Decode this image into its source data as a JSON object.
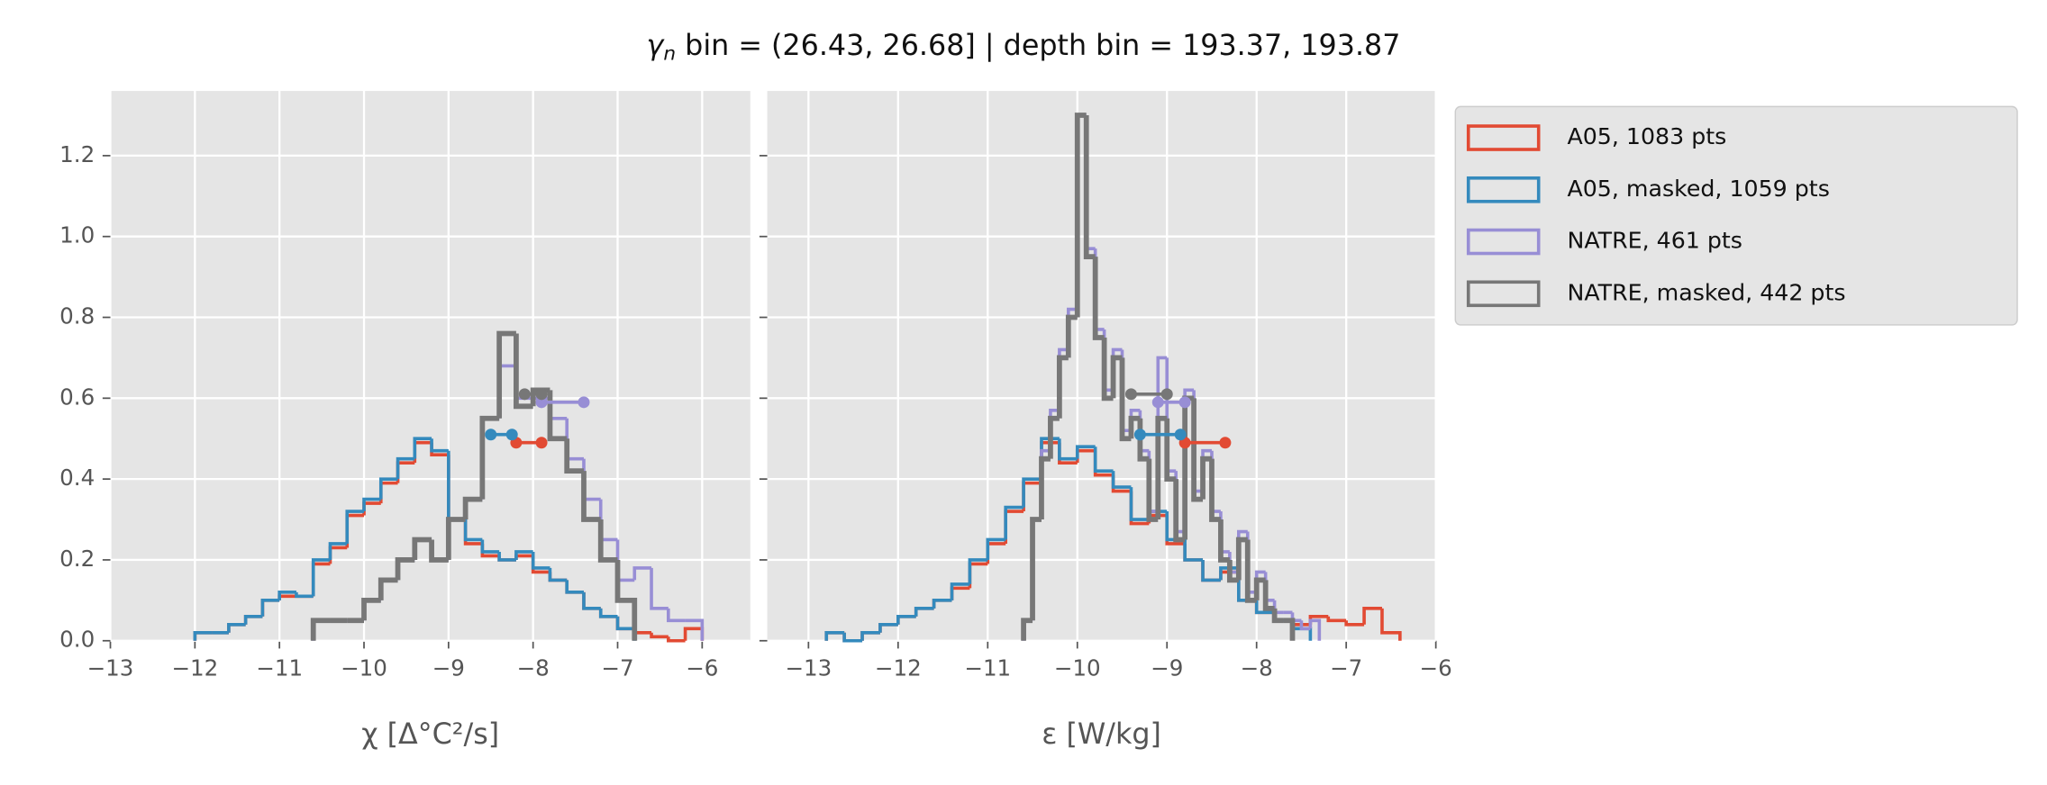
{
  "title_symbol": "γ",
  "title_symbol_sub": "n",
  "title": " bin = (26.43, 26.68] | depth bin = 193.37, 193.87",
  "chart_data": [
    {
      "type": "histogram",
      "xlabel": "χ [Δ°C²/s]",
      "legend": "outside upper right",
      "grid": true,
      "xlim": [
        -13,
        -5.43
      ],
      "ylim": [
        0,
        1.36
      ],
      "xticks": [
        {
          "value": -13,
          "label": "−13"
        },
        {
          "value": -12,
          "label": "−12"
        },
        {
          "value": -11,
          "label": "−11"
        },
        {
          "value": -10,
          "label": "−10"
        },
        {
          "value": -9,
          "label": "−9"
        },
        {
          "value": -8,
          "label": "−8"
        },
        {
          "value": -7,
          "label": "−7"
        },
        {
          "value": -6,
          "label": "−6"
        }
      ],
      "yticks": [
        {
          "value": 0,
          "label": "0.0"
        },
        {
          "value": 0.2,
          "label": "0.2"
        },
        {
          "value": 0.4,
          "label": "0.4"
        },
        {
          "value": 0.6,
          "label": "0.6"
        },
        {
          "value": 0.8,
          "label": "0.8"
        },
        {
          "value": 1.0,
          "label": "1.0"
        },
        {
          "value": 1.2,
          "label": "1.2"
        }
      ],
      "series": [
        {
          "name": "A05, 1083 pts",
          "color": "#E24A33",
          "width": 2.5,
          "bins": [
            -12,
            -11.8,
            -11.6,
            -11.4,
            -11.2,
            -11,
            -10.8,
            -10.6,
            -10.4,
            -10.2,
            -10,
            -9.8,
            -9.6,
            -9.4,
            -9.2,
            -9,
            -8.8,
            -8.6,
            -8.4,
            -8.2,
            -8,
            -7.8,
            -7.6,
            -7.4,
            -7.2,
            -7,
            -6.8,
            -6.6,
            -6.4,
            -6.2,
            -6
          ],
          "counts": [
            0.02,
            0.02,
            0.04,
            0.06,
            0.1,
            0.11,
            0.11,
            0.19,
            0.23,
            0.31,
            0.34,
            0.39,
            0.44,
            0.49,
            0.46,
            0.3,
            0.24,
            0.21,
            0.2,
            0.21,
            0.17,
            0.15,
            0.12,
            0.08,
            0.06,
            0.03,
            0.02,
            0.01,
            0,
            0.03
          ],
          "range": {
            "x": [
              -8.2,
              -7.9
            ],
            "y": 0.49
          }
        },
        {
          "name": "A05, masked,  1059 pts",
          "color": "#348ABD",
          "width": 2.5,
          "bins": [
            -12,
            -11.8,
            -11.6,
            -11.4,
            -11.2,
            -11,
            -10.8,
            -10.6,
            -10.4,
            -10.2,
            -10,
            -9.8,
            -9.6,
            -9.4,
            -9.2,
            -9,
            -8.8,
            -8.6,
            -8.4,
            -8.2,
            -8,
            -7.8,
            -7.6,
            -7.4,
            -7.2,
            -7,
            -6.8
          ],
          "counts": [
            0.02,
            0.02,
            0.04,
            0.06,
            0.1,
            0.12,
            0.11,
            0.2,
            0.24,
            0.32,
            0.35,
            0.4,
            0.45,
            0.5,
            0.47,
            0.3,
            0.25,
            0.22,
            0.2,
            0.22,
            0.18,
            0.15,
            0.12,
            0.08,
            0.06,
            0.03
          ],
          "range": {
            "x": [
              -8.5,
              -8.25
            ],
            "y": 0.51
          }
        },
        {
          "name": "NATRE, 461 pts",
          "color": "#988ED5",
          "width": 2.5,
          "bins": [
            -10.6,
            -10.4,
            -10.2,
            -10,
            -9.8,
            -9.6,
            -9.4,
            -9.2,
            -9,
            -8.8,
            -8.6,
            -8.4,
            -8.2,
            -8,
            -7.8,
            -7.6,
            -7.4,
            -7.2,
            -7,
            -6.8,
            -6.6,
            -6.4,
            -6.2,
            -6
          ],
          "counts": [
            0.05,
            0.05,
            0.05,
            0.1,
            0.15,
            0.2,
            0.25,
            0.2,
            0.3,
            0.35,
            0.55,
            0.68,
            0.6,
            0.6,
            0.55,
            0.45,
            0.35,
            0.25,
            0.15,
            0.18,
            0.08,
            0.05,
            0.05
          ],
          "range": {
            "x": [
              -7.9,
              -7.4
            ],
            "y": 0.59
          }
        },
        {
          "name": "NATRE, masked,  442 pts",
          "color": "#777777",
          "width": 4,
          "bins": [
            -10.6,
            -10.4,
            -10.2,
            -10,
            -9.8,
            -9.6,
            -9.4,
            -9.2,
            -9,
            -8.8,
            -8.6,
            -8.4,
            -8.2,
            -8,
            -7.8,
            -7.6,
            -7.4,
            -7.2,
            -7,
            -6.8
          ],
          "counts": [
            0.05,
            0.05,
            0.05,
            0.1,
            0.15,
            0.2,
            0.25,
            0.2,
            0.3,
            0.35,
            0.55,
            0.76,
            0.58,
            0.62,
            0.5,
            0.42,
            0.3,
            0.2,
            0.1
          ],
          "range": {
            "x": [
              -8.1,
              -7.9
            ],
            "y": 0.61
          }
        }
      ]
    },
    {
      "type": "histogram",
      "xlabel": "ε [W/kg]",
      "grid": true,
      "show_ytick_labels": false,
      "xlim": [
        -13.46,
        -6
      ],
      "ylim": [
        0,
        1.36
      ],
      "xticks": [
        {
          "value": -13,
          "label": "−13"
        },
        {
          "value": -12,
          "label": "−12"
        },
        {
          "value": -11,
          "label": "−11"
        },
        {
          "value": -10,
          "label": "−10"
        },
        {
          "value": -9,
          "label": "−9"
        },
        {
          "value": -8,
          "label": "−8"
        },
        {
          "value": -7,
          "label": "−7"
        },
        {
          "value": -6,
          "label": "−6"
        }
      ],
      "yticks": [
        0,
        0.2,
        0.4,
        0.6,
        0.8,
        1.0,
        1.2
      ],
      "series": [
        {
          "color": "#E24A33",
          "width": 2.5,
          "bins": [
            -12.8,
            -12.6,
            -12.4,
            -12.2,
            -12,
            -11.8,
            -11.6,
            -11.4,
            -11.2,
            -11,
            -10.8,
            -10.6,
            -10.4,
            -10.2,
            -10,
            -9.8,
            -9.6,
            -9.4,
            -9.2,
            -9,
            -8.8,
            -8.6,
            -8.4,
            -8.2,
            -8,
            -7.8,
            -7.6,
            -7.4,
            -7.2,
            -7,
            -6.8,
            -6.6,
            -6.4
          ],
          "counts": [
            0.02,
            0,
            0.02,
            0.04,
            0.06,
            0.08,
            0.1,
            0.13,
            0.19,
            0.24,
            0.32,
            0.39,
            0.49,
            0.44,
            0.47,
            0.41,
            0.37,
            0.29,
            0.31,
            0.24,
            0.2,
            0.15,
            0.17,
            0.1,
            0.07,
            0.05,
            0.04,
            0.06,
            0.05,
            0.04,
            0.08,
            0.02
          ],
          "range": {
            "x": [
              -8.8,
              -8.35
            ],
            "y": 0.49
          }
        },
        {
          "color": "#348ABD",
          "width": 2.5,
          "bins": [
            -12.8,
            -12.6,
            -12.4,
            -12.2,
            -12,
            -11.8,
            -11.6,
            -11.4,
            -11.2,
            -11,
            -10.8,
            -10.6,
            -10.4,
            -10.2,
            -10,
            -9.8,
            -9.6,
            -9.4,
            -9.2,
            -9,
            -8.8,
            -8.6,
            -8.4,
            -8.2,
            -8,
            -7.8,
            -7.6,
            -7.4
          ],
          "counts": [
            0.02,
            0,
            0.02,
            0.04,
            0.06,
            0.08,
            0.1,
            0.14,
            0.2,
            0.25,
            0.33,
            0.4,
            0.5,
            0.45,
            0.48,
            0.42,
            0.38,
            0.3,
            0.32,
            0.25,
            0.2,
            0.15,
            0.18,
            0.1,
            0.07,
            0.05,
            0.03
          ],
          "range": {
            "x": [
              -9.3,
              -8.85
            ],
            "y": 0.51
          }
        },
        {
          "color": "#988ED5",
          "width": 2.5,
          "bins": [
            -10.6,
            -10.5,
            -10.4,
            -10.3,
            -10.2,
            -10.1,
            -10,
            -9.9,
            -9.8,
            -9.7,
            -9.6,
            -9.5,
            -9.4,
            -9.3,
            -9.2,
            -9.1,
            -9,
            -8.9,
            -8.8,
            -8.7,
            -8.6,
            -8.5,
            -8.4,
            -8.3,
            -8.2,
            -8.1,
            -8,
            -7.9,
            -7.8,
            -7.7,
            -7.6,
            -7.5,
            -7.4,
            -7.3
          ],
          "counts": [
            0.05,
            0.3,
            0.47,
            0.57,
            0.72,
            0.82,
            1.3,
            0.97,
            0.77,
            0.62,
            0.72,
            0.52,
            0.57,
            0.47,
            0.32,
            0.7,
            0.42,
            0.27,
            0.62,
            0.37,
            0.47,
            0.32,
            0.22,
            0.17,
            0.27,
            0.12,
            0.17,
            0.1,
            0.07,
            0.07,
            0.05,
            0.03,
            0.05
          ],
          "range": {
            "x": [
              -9.1,
              -8.8
            ],
            "y": 0.59
          }
        },
        {
          "color": "#777777",
          "width": 4,
          "bins": [
            -10.6,
            -10.5,
            -10.4,
            -10.3,
            -10.2,
            -10.1,
            -10,
            -9.9,
            -9.8,
            -9.7,
            -9.6,
            -9.5,
            -9.4,
            -9.3,
            -9.2,
            -9.1,
            -9,
            -8.9,
            -8.8,
            -8.7,
            -8.6,
            -8.5,
            -8.4,
            -8.3,
            -8.2,
            -8.1,
            -8,
            -7.9,
            -7.8,
            -7.7,
            -7.6
          ],
          "counts": [
            0.05,
            0.3,
            0.45,
            0.55,
            0.7,
            0.8,
            1.3,
            0.95,
            0.75,
            0.6,
            0.7,
            0.5,
            0.55,
            0.45,
            0.3,
            0.55,
            0.4,
            0.25,
            0.6,
            0.35,
            0.45,
            0.3,
            0.2,
            0.15,
            0.25,
            0.1,
            0.15,
            0.08,
            0.05,
            0.05
          ],
          "range": {
            "x": [
              -9.4,
              -9.0
            ],
            "y": 0.61
          }
        }
      ]
    }
  ]
}
